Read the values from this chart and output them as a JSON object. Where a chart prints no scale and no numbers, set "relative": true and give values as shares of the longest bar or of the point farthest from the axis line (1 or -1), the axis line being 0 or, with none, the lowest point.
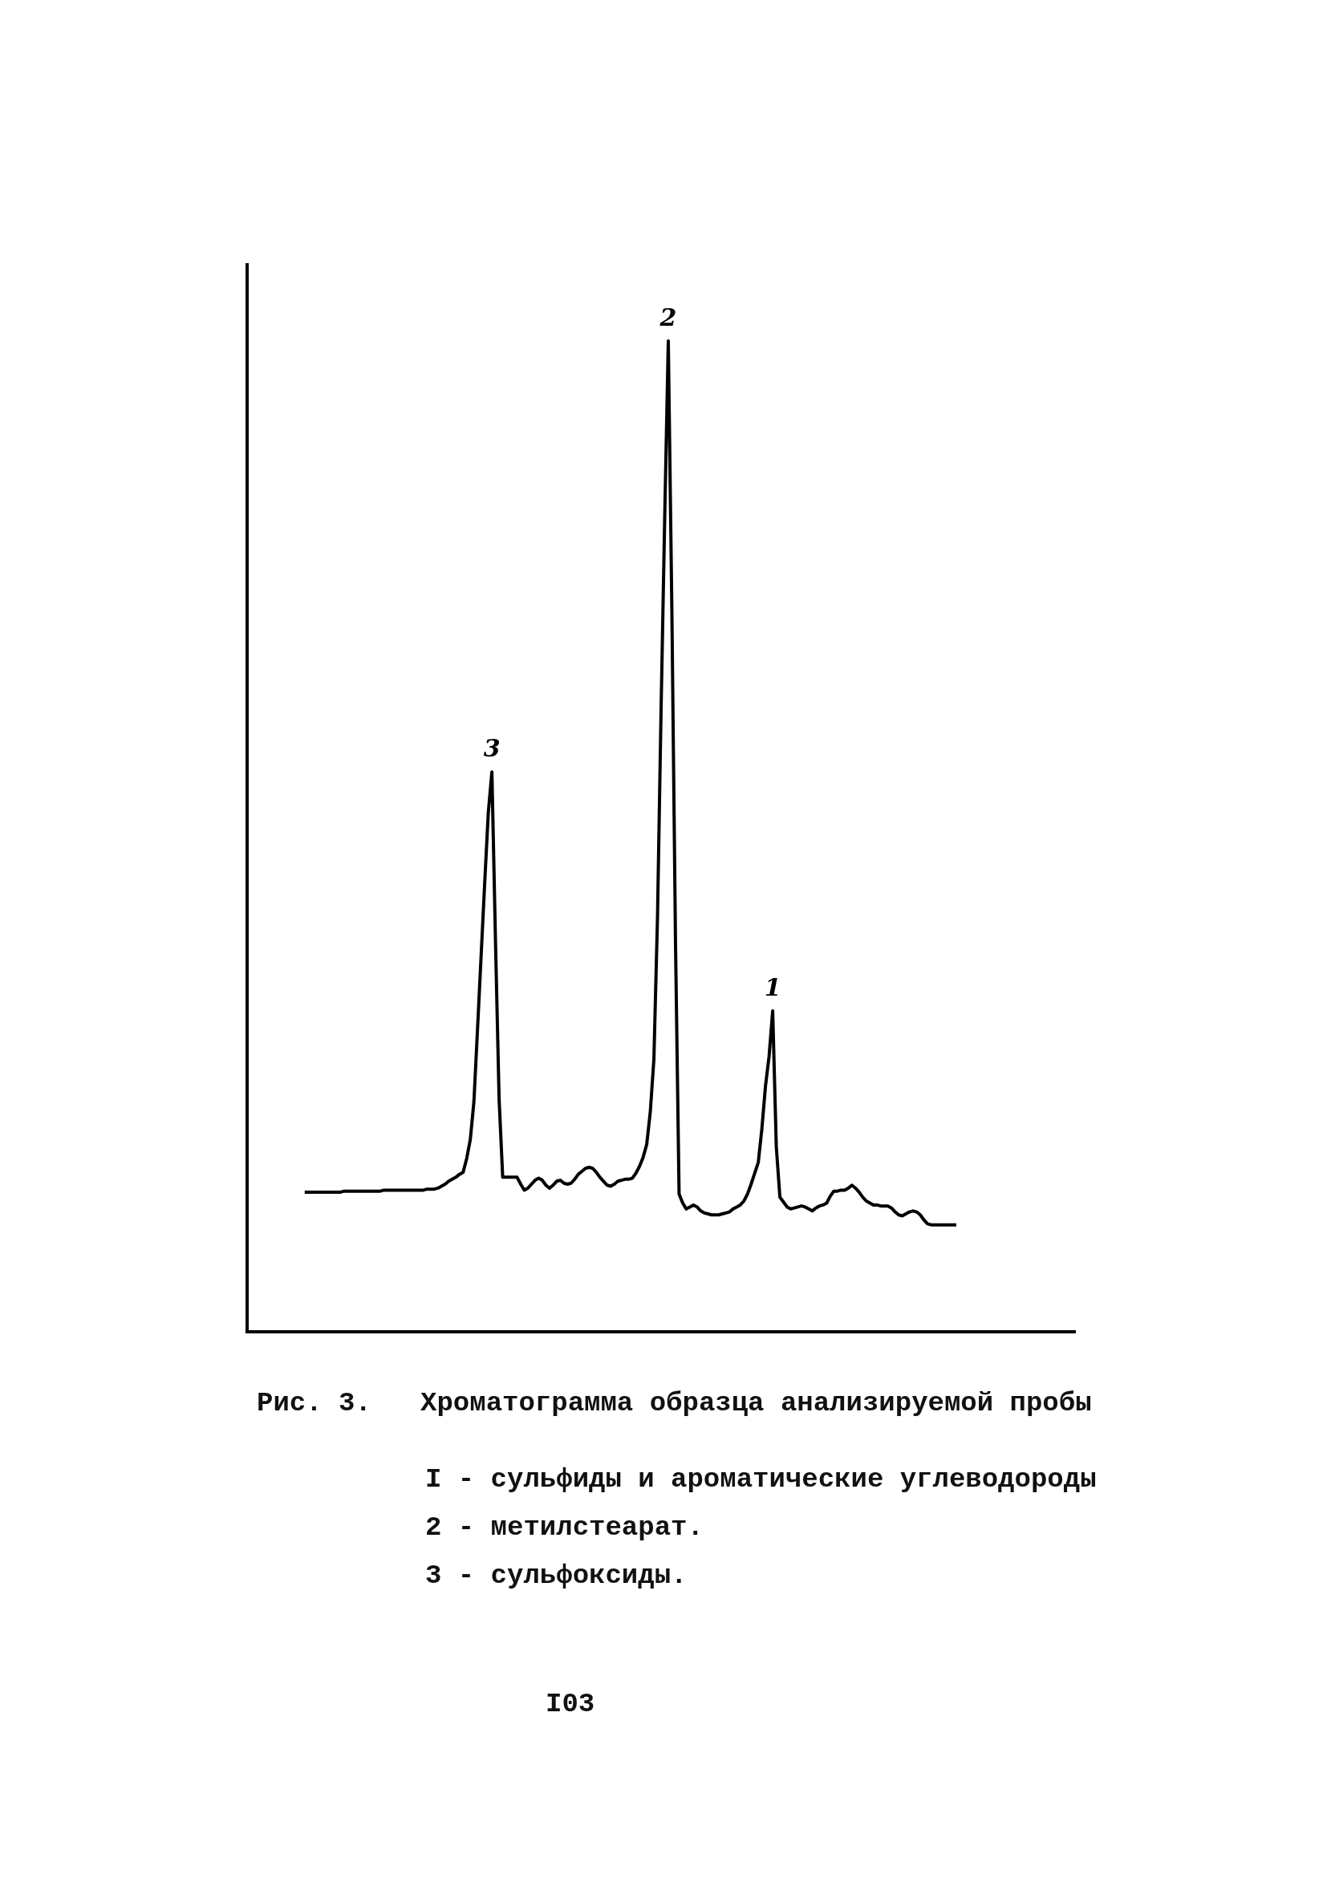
{
  "chart_data": {
    "type": "line",
    "relative": true,
    "title": "Рис. 3.   Хроматограмма образца анализируемой пробы",
    "color": "#000000",
    "categories": [
      null,
      null,
      null,
      null,
      null,
      null,
      null,
      null,
      null,
      null,
      null,
      null,
      null,
      null,
      null,
      null,
      null,
      null,
      null,
      null,
      null,
      null,
      null,
      null,
      null,
      null,
      null,
      null,
      null,
      null,
      null,
      null,
      null,
      null,
      null,
      null,
      null,
      null,
      null,
      null,
      null,
      null,
      null,
      null,
      null,
      null,
      null,
      null,
      null,
      null,
      null,
      null,
      null,
      null,
      null,
      null,
      null,
      null,
      null,
      null,
      null,
      null,
      null,
      null,
      null,
      null,
      null,
      null,
      null,
      null,
      null,
      null,
      null,
      null,
      null,
      null,
      null,
      null,
      null,
      null,
      null,
      null,
      null,
      null,
      null,
      null,
      null,
      null,
      null,
      null,
      null,
      null,
      null,
      null,
      null,
      null,
      null,
      null,
      null,
      null,
      null,
      null,
      null,
      null,
      null,
      null,
      null,
      null,
      null,
      null,
      null,
      null,
      null,
      null,
      null,
      null,
      null,
      null,
      null,
      null,
      null,
      null,
      null,
      null,
      null,
      null,
      null,
      null,
      null,
      null,
      null,
      null,
      null,
      null,
      null,
      null,
      null,
      null,
      null,
      null,
      null,
      null,
      null,
      null,
      null,
      null,
      null,
      null,
      null,
      null,
      null,
      null,
      null,
      null,
      null,
      null,
      null,
      null,
      null,
      null,
      null,
      null,
      null,
      null,
      null,
      null,
      null,
      null,
      null,
      null,
      null,
      null,
      null,
      null,
      null,
      null,
      null,
      null,
      null,
      null,
      null,
      null
    ],
    "values": [
      0.141,
      0.141,
      0.141,
      0.141,
      0.141,
      0.141,
      0.141,
      0.141,
      0.141,
      0.141,
      0.141,
      0.142,
      0.142,
      0.142,
      0.142,
      0.142,
      0.142,
      0.142,
      0.142,
      0.142,
      0.142,
      0.142,
      0.143,
      0.143,
      0.143,
      0.143,
      0.143,
      0.143,
      0.143,
      0.143,
      0.143,
      0.143,
      0.143,
      0.143,
      0.144,
      0.144,
      0.144,
      0.145,
      0.147,
      0.149,
      0.152,
      0.154,
      0.156,
      0.159,
      0.161,
      0.175,
      0.194,
      0.232,
      0.305,
      0.379,
      0.453,
      0.524,
      0.565,
      0.394,
      0.235,
      0.156,
      0.156,
      0.156,
      0.156,
      0.156,
      0.149,
      0.143,
      0.145,
      0.149,
      0.153,
      0.155,
      0.153,
      0.148,
      0.145,
      0.148,
      0.152,
      0.153,
      0.15,
      0.149,
      0.15,
      0.154,
      0.159,
      0.162,
      0.165,
      0.166,
      0.165,
      0.161,
      0.156,
      0.152,
      0.148,
      0.147,
      0.149,
      0.152,
      0.153,
      0.154,
      0.154,
      0.155,
      0.16,
      0.167,
      0.176,
      0.189,
      0.222,
      0.275,
      0.418,
      0.629,
      0.821,
      1,
      0.727,
      0.394,
      0.139,
      0.13,
      0.124,
      0.126,
      0.128,
      0.126,
      0.122,
      0.12,
      0.119,
      0.118,
      0.118,
      0.118,
      0.119,
      0.12,
      0.121,
      0.124,
      0.126,
      0.128,
      0.132,
      0.139,
      0.149,
      0.16,
      0.171,
      0.205,
      0.248,
      0.278,
      0.324,
      0.187,
      0.136,
      0.131,
      0.126,
      0.124,
      0.125,
      0.126,
      0.127,
      0.126,
      0.124,
      0.122,
      0.125,
      0.127,
      0.128,
      0.13,
      0.137,
      0.142,
      0.142,
      0.143,
      0.143,
      0.145,
      0.148,
      0.145,
      0.141,
      0.136,
      0.132,
      0.13,
      0.128,
      0.128,
      0.127,
      0.127,
      0.127,
      0.125,
      0.121,
      0.118,
      0.117,
      0.119,
      0.121,
      0.122,
      0.121,
      0.118,
      0.113,
      0.109,
      0.108,
      0.108,
      0.108,
      0.108,
      0.108,
      0.108,
      0.108,
      0.108
    ],
    "annotations": [
      {
        "text": "3",
        "y": 0.565
      },
      {
        "text": "2",
        "y": 1
      },
      {
        "text": "1",
        "y": 0.324
      },
      "I - сульфиды и ароматические углеводороды",
      "2 - метилстеарат.",
      "3 - сульфоксиды.",
      "I03"
    ]
  }
}
